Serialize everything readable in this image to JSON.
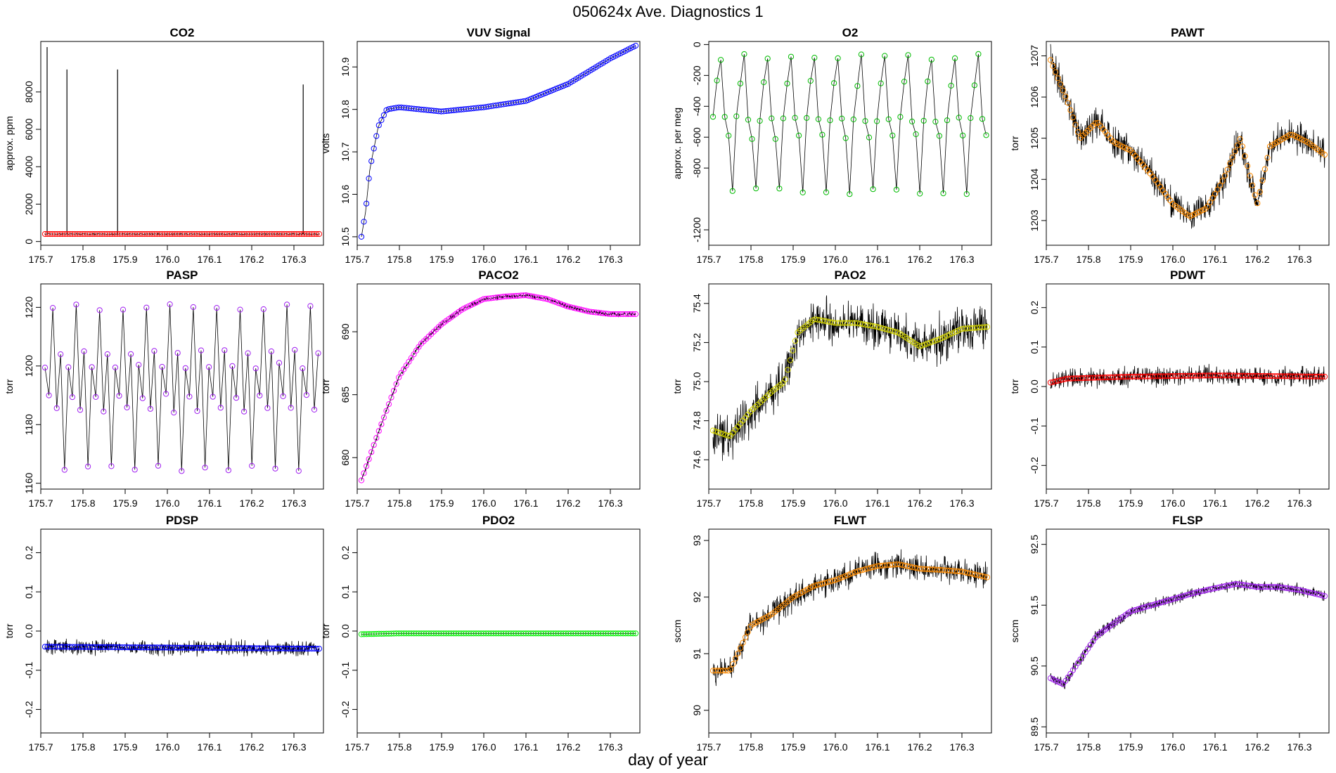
{
  "figure": {
    "title": "050624x   Ave. Diagnostics 1",
    "xlabel": "day of year"
  },
  "x_axis": {
    "range": [
      175.7,
      176.37
    ],
    "ticks": [
      "175.7",
      "175.8",
      "175.9",
      "176.0",
      "176.1",
      "176.2",
      "176.3"
    ]
  },
  "chart_data": [
    {
      "type": "line",
      "title": "CO2",
      "ylabel": "approx. ppm",
      "ylim": [
        -200,
        10700
      ],
      "yticks": [
        0,
        2000,
        4000,
        6000,
        8000
      ],
      "ytick_labels": [
        "0",
        "2000",
        "4000",
        "6000",
        "8000"
      ],
      "marker_color": "#ff0000",
      "series": [
        {
          "x_range": [
            175.71,
            176.36
          ],
          "base": 400,
          "noise": 40
        }
      ],
      "spikes": [
        {
          "x": 175.715,
          "y": 10400
        },
        {
          "x": 175.762,
          "y": 9200
        },
        {
          "x": 175.882,
          "y": 9200
        },
        {
          "x": 176.322,
          "y": 8400
        }
      ]
    },
    {
      "type": "line",
      "title": "VUV Signal",
      "ylabel": "volts",
      "ylim": [
        10.48,
        10.96
      ],
      "yticks": [
        10.5,
        10.6,
        10.7,
        10.8,
        10.9
      ],
      "ytick_labels": [
        "10.5",
        "10.6",
        "10.7",
        "10.8",
        "10.9"
      ],
      "marker_color": "#0000ff",
      "series": [
        {
          "points": [
            [
              175.71,
              10.5
            ],
            [
              175.72,
              10.56
            ],
            [
              175.73,
              10.66
            ],
            [
              175.75,
              10.76
            ],
            [
              175.77,
              10.8
            ],
            [
              175.8,
              10.805
            ],
            [
              175.85,
              10.8
            ],
            [
              175.9,
              10.795
            ],
            [
              176.0,
              10.805
            ],
            [
              176.1,
              10.82
            ],
            [
              176.2,
              10.86
            ],
            [
              176.3,
              10.92
            ],
            [
              176.36,
              10.95
            ]
          ]
        }
      ]
    },
    {
      "type": "line",
      "title": "O2",
      "ylabel": "approx. per meg",
      "ylim": [
        -1300,
        20
      ],
      "yticks": [
        -1200,
        -800,
        -600,
        -400,
        -200,
        0
      ],
      "ytick_labels": [
        "-1200",
        "-800",
        "-600",
        "-400",
        "-200",
        "0"
      ],
      "marker_color": "#00bb00",
      "series": [
        {
          "x_range": [
            175.71,
            176.36
          ],
          "cycle_days": 0.0555,
          "levels": [
            -480,
            -250,
            -80,
            -480,
            -600,
            -950
          ]
        }
      ]
    },
    {
      "type": "line",
      "title": "PAWT",
      "ylabel": "torr",
      "ylim": [
        1202.4,
        1207.35
      ],
      "yticks": [
        1203,
        1204,
        1205,
        1206,
        1207
      ],
      "ytick_labels": [
        "1203",
        "1204",
        "1205",
        "1206",
        "1207"
      ],
      "marker_color": "#ff8c00",
      "series": [
        {
          "points": [
            [
              175.71,
              1206.9
            ],
            [
              175.75,
              1205.9
            ],
            [
              175.78,
              1205.0
            ],
            [
              175.82,
              1205.4
            ],
            [
              175.86,
              1204.9
            ],
            [
              175.9,
              1204.7
            ],
            [
              175.95,
              1204.1
            ],
            [
              176.0,
              1203.4
            ],
            [
              176.04,
              1203.1
            ],
            [
              176.08,
              1203.3
            ],
            [
              176.12,
              1204.0
            ],
            [
              176.16,
              1205.0
            ],
            [
              176.2,
              1203.4
            ],
            [
              176.23,
              1204.8
            ],
            [
              176.28,
              1205.1
            ],
            [
              176.32,
              1204.9
            ],
            [
              176.36,
              1204.6
            ]
          ]
        }
      ],
      "noise": 0.5
    },
    {
      "type": "line",
      "title": "PASP",
      "ylabel": "torr",
      "ylim": [
        1158,
        1228
      ],
      "yticks": [
        1160,
        1180,
        1200,
        1220
      ],
      "ytick_labels": [
        "1160",
        "1180",
        "1200",
        "1220"
      ],
      "marker_color": "#a020f0",
      "series": [
        {
          "x_range": [
            175.71,
            176.36
          ],
          "cycle_days": 0.0555,
          "levels": [
            1200,
            1190,
            1220,
            1185,
            1205,
            1165
          ]
        }
      ]
    },
    {
      "type": "line",
      "title": "PACO2",
      "ylabel": "torr",
      "ylim": [
        677.5,
        693.8
      ],
      "yticks": [
        680,
        685,
        690
      ],
      "ytick_labels": [
        "680",
        "685",
        "690"
      ],
      "marker_color": "#ff00ff",
      "series": [
        {
          "points": [
            [
              175.71,
              678.2
            ],
            [
              175.75,
              682.0
            ],
            [
              175.8,
              686.5
            ],
            [
              175.85,
              689.0
            ],
            [
              175.9,
              690.6
            ],
            [
              175.95,
              691.8
            ],
            [
              176.0,
              692.6
            ],
            [
              176.05,
              692.8
            ],
            [
              176.1,
              692.9
            ],
            [
              176.15,
              692.6
            ],
            [
              176.2,
              692.0
            ],
            [
              176.25,
              691.6
            ],
            [
              176.3,
              691.4
            ],
            [
              176.36,
              691.4
            ]
          ]
        }
      ],
      "noise": 0.25
    },
    {
      "type": "line",
      "title": "PAO2",
      "ylabel": "torr",
      "ylim": [
        74.45,
        75.5
      ],
      "yticks": [
        74.6,
        74.8,
        75.0,
        75.2,
        75.4
      ],
      "ytick_labels": [
        "74.6",
        "74.8",
        "75.0",
        "75.2",
        "75.4"
      ],
      "marker_color": "#d8d800",
      "series": [
        {
          "points": [
            [
              175.71,
              74.75
            ],
            [
              175.75,
              74.72
            ],
            [
              175.8,
              74.85
            ],
            [
              175.85,
              74.95
            ],
            [
              175.88,
              75.0
            ],
            [
              175.91,
              75.25
            ],
            [
              175.95,
              75.32
            ],
            [
              176.0,
              75.3
            ],
            [
              176.05,
              75.3
            ],
            [
              176.1,
              75.28
            ],
            [
              176.15,
              75.25
            ],
            [
              176.2,
              75.18
            ],
            [
              176.25,
              75.22
            ],
            [
              176.3,
              75.27
            ],
            [
              176.36,
              75.28
            ]
          ]
        }
      ],
      "noise": 0.15
    },
    {
      "type": "line",
      "title": "PDWT",
      "ylabel": "torr",
      "ylim": [
        -0.26,
        0.26
      ],
      "yticks": [
        -0.2,
        -0.1,
        0.0,
        0.1,
        0.2
      ],
      "ytick_labels": [
        "-0.2",
        "-0.1",
        "0.0",
        "0.1",
        "0.2"
      ],
      "marker_color": "#ff0000",
      "series": [
        {
          "points": [
            [
              175.71,
              0.01
            ],
            [
              175.75,
              0.02
            ],
            [
              175.9,
              0.025
            ],
            [
              176.1,
              0.028
            ],
            [
              176.36,
              0.025
            ]
          ]
        }
      ],
      "noise": 0.03
    },
    {
      "type": "line",
      "title": "PDSP",
      "ylabel": "torr",
      "ylim": [
        -0.26,
        0.26
      ],
      "yticks": [
        -0.2,
        -0.1,
        0.0,
        0.1,
        0.2
      ],
      "ytick_labels": [
        "-0.2",
        "-0.1",
        "0.0",
        "0.1",
        "0.2"
      ],
      "marker_color": "#0000ff",
      "series": [
        {
          "points": [
            [
              175.71,
              -0.04
            ],
            [
              176.36,
              -0.045
            ]
          ]
        }
      ],
      "noise": 0.025
    },
    {
      "type": "line",
      "title": "PDO2",
      "ylabel": "torr",
      "ylim": [
        -0.26,
        0.26
      ],
      "yticks": [
        -0.2,
        -0.1,
        0.0,
        0.1,
        0.2
      ],
      "ytick_labels": [
        "-0.2",
        "-0.1",
        "0.0",
        "0.1",
        "0.2"
      ],
      "marker_color": "#00ee00",
      "series": [
        {
          "points": [
            [
              175.71,
              -0.008
            ],
            [
              175.8,
              -0.006
            ],
            [
              176.36,
              -0.006
            ]
          ]
        }
      ],
      "noise": 0.0
    },
    {
      "type": "line",
      "title": "FLWT",
      "ylabel": "sccm",
      "ylim": [
        89.6,
        93.2
      ],
      "yticks": [
        90,
        91,
        92,
        93
      ],
      "ytick_labels": [
        "90",
        "91",
        "92",
        "93"
      ],
      "marker_color": "#ff8c00",
      "series": [
        {
          "points": [
            [
              175.71,
              90.7
            ],
            [
              175.75,
              90.7
            ],
            [
              175.8,
              91.5
            ],
            [
              175.85,
              91.7
            ],
            [
              175.9,
              92.0
            ],
            [
              175.95,
              92.2
            ],
            [
              176.0,
              92.3
            ],
            [
              176.05,
              92.45
            ],
            [
              176.1,
              92.55
            ],
            [
              176.15,
              92.58
            ],
            [
              176.2,
              92.5
            ],
            [
              176.25,
              92.48
            ],
            [
              176.3,
              92.45
            ],
            [
              176.36,
              92.35
            ]
          ]
        }
      ],
      "noise": 0.3
    },
    {
      "type": "line",
      "title": "FLSP",
      "ylabel": "sccm",
      "ylim": [
        89.4,
        92.75
      ],
      "yticks": [
        89.5,
        90.5,
        91.5,
        92.5
      ],
      "ytick_labels": [
        "89.5",
        "90.5",
        "91.5",
        "92.5"
      ],
      "marker_color": "#a020f0",
      "series": [
        {
          "points": [
            [
              175.71,
              90.3
            ],
            [
              175.74,
              90.2
            ],
            [
              175.78,
              90.6
            ],
            [
              175.82,
              91.0
            ],
            [
              175.86,
              91.2
            ],
            [
              175.9,
              91.4
            ],
            [
              175.95,
              91.5
            ],
            [
              176.0,
              91.6
            ],
            [
              176.05,
              91.7
            ],
            [
              176.1,
              91.78
            ],
            [
              176.15,
              91.85
            ],
            [
              176.2,
              91.8
            ],
            [
              176.25,
              91.8
            ],
            [
              176.3,
              91.75
            ],
            [
              176.36,
              91.65
            ]
          ]
        }
      ],
      "noise": 0.12
    }
  ]
}
